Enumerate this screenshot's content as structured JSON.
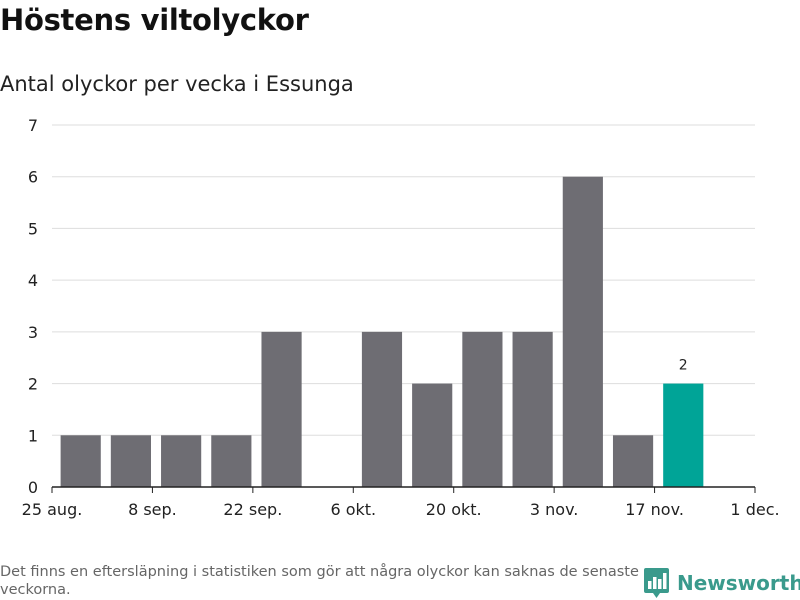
{
  "header": {
    "title": "Höstens viltolyckor",
    "subtitle": "Antal olyckor per vecka i Essunga"
  },
  "footer": {
    "note": "Det finns en eftersläpning i statistiken som gör att några olyckor kan saknas de senaste veckorna.",
    "brand": "Newsworthy",
    "brand_icon": "newsworthy-logo-icon"
  },
  "colors": {
    "bar": "#6e6d73",
    "highlight": "#00a497",
    "brand": "#3a9a8c",
    "grid": "#dddddd"
  },
  "chart_data": {
    "type": "bar",
    "title": "Höstens viltolyckor",
    "subtitle": "Antal olyckor per vecka i Essunga",
    "x": [
      "2022-08-29",
      "2022-09-05",
      "2022-09-12",
      "2022-09-19",
      "2022-09-26",
      "2022-10-03",
      "2022-10-10",
      "2022-10-17",
      "2022-10-24",
      "2022-10-31",
      "2022-11-07",
      "2022-11-14",
      "2022-11-21"
    ],
    "values": [
      1,
      1,
      1,
      1,
      3,
      0,
      3,
      2,
      3,
      3,
      6,
      1,
      2
    ],
    "highlight_index": 12,
    "data_labels": [
      {
        "index": 12,
        "text": "2"
      }
    ],
    "ylim": [
      0,
      7
    ],
    "yticks": [
      "0",
      "1",
      "2",
      "3",
      "4",
      "5",
      "6",
      "7"
    ],
    "xlim": [
      "2022-08-25",
      "2022-12-01"
    ],
    "xticks": [
      {
        "date": "2022-08-25",
        "label": "25 aug."
      },
      {
        "date": "2022-09-08",
        "label": "8 sep."
      },
      {
        "date": "2022-09-22",
        "label": "22 sep."
      },
      {
        "date": "2022-10-06",
        "label": "6 okt."
      },
      {
        "date": "2022-10-20",
        "label": "20 okt."
      },
      {
        "date": "2022-11-03",
        "label": "3 nov."
      },
      {
        "date": "2022-11-17",
        "label": "17 nov."
      },
      {
        "date": "2022-12-01",
        "label": "1 dec."
      }
    ],
    "xlabel": "",
    "ylabel": "",
    "grid": true,
    "legend": false
  }
}
